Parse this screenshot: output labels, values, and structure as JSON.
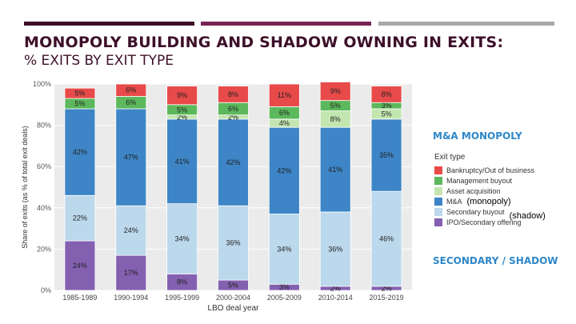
{
  "slide": {
    "title": "MONOPOLY BUILDING AND SHADOW OWNING IN EXITS:",
    "subtitle": "% EXITS BY EXIT TYPE",
    "note_monopoly": "M&A MONOPOLY",
    "note_shadow": "SECONDARY / SHADOW",
    "annotation_monopoly": "(monopoly)",
    "annotation_shadow": "(shadow)"
  },
  "colors": {
    "rule_dark": "#3d1029",
    "rule_mid": "#7b2154",
    "rule_gray": "#a8a8a8",
    "title": "#3d1029",
    "notes": "#2f87c8"
  },
  "chart_data": {
    "type": "bar",
    "stacked": true,
    "xlabel": "LBO deal year",
    "ylabel": "Share of exits (as % of total exit deals)",
    "ylim": [
      0,
      100
    ],
    "yticks": [
      "0%",
      "20%",
      "40%",
      "60%",
      "80%",
      "100%"
    ],
    "grid": true,
    "legend_title": "Exit type",
    "legend_position": "right",
    "categories": [
      "1985-1989",
      "1990-1994",
      "1995-1999",
      "2000-2004",
      "2005-2009",
      "2010-2014",
      "2015-2019"
    ],
    "series": [
      {
        "name": "IPO/Secondary offering",
        "color": "#8460b0",
        "values": [
          24,
          17,
          8,
          5,
          3,
          2,
          2
        ],
        "labels": [
          "24%",
          "17%",
          "8%",
          "5%",
          "3%",
          "2%",
          "2%"
        ]
      },
      {
        "name": "Secondary buyout",
        "color": "#bcd8ec",
        "values": [
          22,
          24,
          34,
          36,
          34,
          36,
          46
        ],
        "labels": [
          "22%",
          "24%",
          "34%",
          "36%",
          "34%",
          "36%",
          "46%"
        ]
      },
      {
        "name": "M&A",
        "color": "#3d85c6",
        "values": [
          42,
          47,
          41,
          42,
          42,
          41,
          35
        ],
        "labels": [
          "42%",
          "47%",
          "41%",
          "42%",
          "42%",
          "41%",
          "35%"
        ]
      },
      {
        "name": "Asset acquisition",
        "color": "#c3e6b0",
        "values": [
          0,
          0,
          2,
          2,
          4,
          8,
          5
        ],
        "labels": [
          "",
          "",
          "2%",
          "2%",
          "4%",
          "8%",
          "5%"
        ]
      },
      {
        "name": "Management buyout",
        "color": "#5cb85c",
        "values": [
          5,
          6,
          5,
          6,
          6,
          5,
          3
        ],
        "labels": [
          "5%",
          "6%",
          "5%",
          "6%",
          "6%",
          "5%",
          "3%"
        ]
      },
      {
        "name": "Bankruptcy/Out of business",
        "color": "#e84a4a",
        "values": [
          5,
          6,
          9,
          8,
          11,
          9,
          8
        ],
        "labels": [
          "5%",
          "6%",
          "9%",
          "8%",
          "11%",
          "9%",
          "8%"
        ]
      }
    ],
    "legend_order": [
      "Bankruptcy/Out of business",
      "Management buyout",
      "Asset acquisition",
      "M&A",
      "Secondary buyout",
      "IPO/Secondary offering"
    ]
  }
}
